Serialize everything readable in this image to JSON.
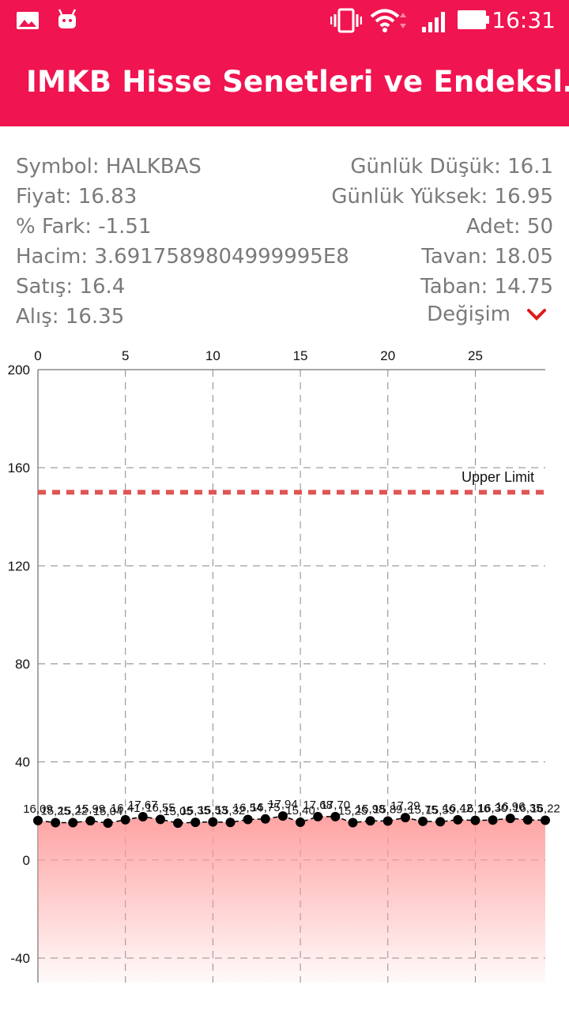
{
  "status_bar": {
    "time": "16:31"
  },
  "app_bar": {
    "title": "IMKB Hisse Senetleri ve Endeksl…"
  },
  "info_left": [
    "Symbol: HALKBAS",
    "Fiyat: 16.83",
    "% Fark: -1.51",
    "Hacim: 3.6917589804999995E8",
    "Satış: 16.4",
    "Alış: 16.35"
  ],
  "info_right": [
    "Günlük Düşük: 16.1",
    "Günlük Yüksek: 16.95",
    "Adet: 50",
    "Tavan: 18.05",
    "Taban: 14.75"
  ],
  "degisim": {
    "label": "Değişim",
    "icon": "chevron-down-icon",
    "color": "#e01a1a"
  },
  "chart_data": {
    "type": "line",
    "x_axis_position": "top",
    "xlim": [
      0,
      29
    ],
    "x_ticks": [
      0,
      5,
      10,
      15,
      20,
      25
    ],
    "ylim": [
      -50,
      200
    ],
    "y_ticks": [
      -40,
      0,
      40,
      80,
      120,
      160,
      200
    ],
    "grid": true,
    "fill": "area gradient below line",
    "fill_color": "#ff9999",
    "line_color": "#000000",
    "point_color": "#000000",
    "limit_line": {
      "label": "Upper Limit",
      "value": 150,
      "color": "#e05555",
      "style": "dashed"
    },
    "x": [
      0,
      1,
      2,
      3,
      4,
      5,
      6,
      7,
      8,
      9,
      10,
      11,
      12,
      13,
      14,
      15,
      16,
      17,
      18,
      19,
      20,
      21,
      22,
      23,
      24,
      25,
      26,
      27,
      28,
      29
    ],
    "values": [
      16.09,
      15.25,
      15.22,
      15.99,
      15.04,
      16.41,
      17.67,
      16.55,
      15.05,
      15.35,
      15.53,
      15.32,
      16.54,
      16.75,
      17.94,
      15.4,
      17.68,
      17.7,
      15.25,
      15.98,
      15.89,
      17.29,
      15.75,
      15.59,
      16.42,
      16.16,
      16.3,
      16.96,
      16.35,
      16.22
    ]
  }
}
